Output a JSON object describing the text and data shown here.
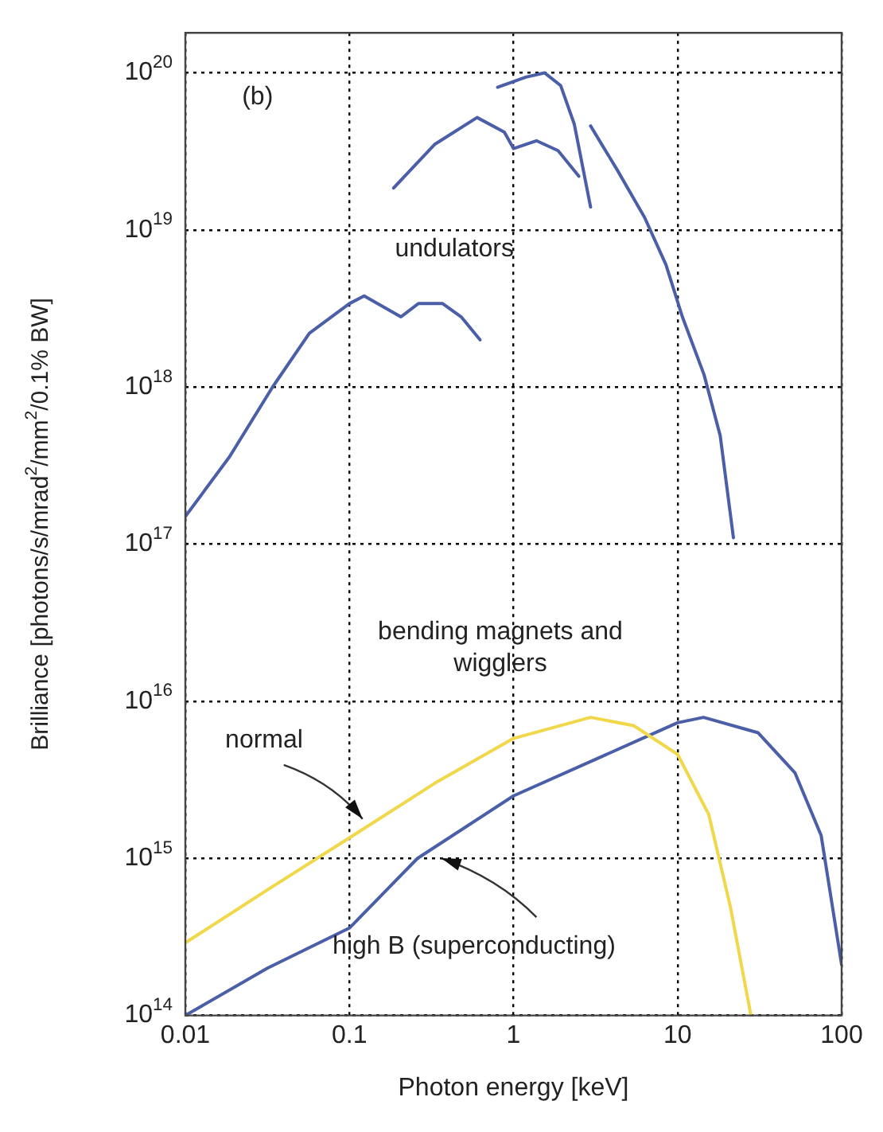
{
  "chart_data": {
    "type": "line",
    "xlabel": "Photon energy [keV]",
    "ylabel": "Brilliance [photons/s/mrad$^{2}$/mm$^{2}$/0.1% BW]",
    "log": "xy",
    "grid": true,
    "legend": false,
    "marker": "none",
    "line_style": "solid",
    "xlim": [
      0.01,
      100
    ],
    "xticks": [
      0.01,
      0.1,
      1,
      10,
      100
    ],
    "ylim": [
      100000000000000.0,
      1.8e+20
    ],
    "yticks": [
      {
        "value": 100000000000000.0,
        "label": "10$^{14}$"
      },
      {
        "value": 1000000000000000.0,
        "label": "10$^{15}$"
      },
      {
        "value": 1e+16,
        "label": "10$^{16}$"
      },
      {
        "value": 1e+17,
        "label": "10$^{17}$"
      },
      {
        "value": 1e+18,
        "label": "10$^{18}$"
      },
      {
        "value": 1e+19,
        "label": "10$^{19}$"
      },
      {
        "value": 1e+20,
        "label": "10$^{20}$"
      }
    ],
    "series": [
      {
        "color": "#4a5fa8",
        "x": [
          0.01,
          0.0186,
          0.034,
          0.057,
          0.1,
          0.123,
          0.206,
          0.263,
          0.37,
          0.48,
          0.625
        ],
        "values": [
          1.5e+17,
          3.6e+17,
          1e+18,
          2.2e+18,
          3.4e+18,
          3.8e+18,
          2.8e+18,
          3.4e+18,
          3.4e+18,
          2.8e+18,
          2e+18
        ]
      },
      {
        "color": "#4a5fa8",
        "x": [
          0.186,
          0.33,
          0.6,
          0.88,
          1.0,
          1.38,
          1.87,
          2.5
        ],
        "values": [
          1.85e+19,
          3.5e+19,
          5.2e+19,
          4.2e+19,
          3.3e+19,
          3.7e+19,
          3.2e+19,
          2.2e+19
        ]
      },
      {
        "color": "#4a5fa8",
        "x": [
          0.8,
          1.19,
          1.55,
          1.94,
          2.35,
          2.95
        ],
        "values": [
          8.1e+19,
          9.4e+19,
          1e+20,
          8.3e+19,
          4.7e+19,
          1.4e+19
        ]
      },
      {
        "color": "#4a5fa8",
        "x": [
          2.95,
          4.3,
          6.3,
          8.5,
          10.7,
          14.5,
          18.2,
          21.9
        ],
        "values": [
          4.6e+19,
          2.4e+19,
          1.2e+19,
          6e+18,
          2.8e+18,
          1.2e+18,
          4.9e+17,
          1.1e+17
        ]
      },
      {
        "color": "#f0d84a",
        "x": [
          0.01,
          0.0316,
          0.1,
          0.33,
          1,
          2.95,
          5.4,
          10,
          15.5,
          21,
          28
        ],
        "values": [
          290000000000000.0,
          630000000000000.0,
          1350000000000000.0,
          3000000000000000.0,
          5800000000000000.0,
          7900000000000000.0,
          7000000000000000.0,
          4600000000000000.0,
          1900000000000000.0,
          490000000000000.0,
          100000000000000.0
        ]
      },
      {
        "color": "#4a5fa8",
        "x": [
          0.01,
          0.0316,
          0.1,
          0.26,
          1,
          10,
          14.4,
          31,
          52,
          75,
          100
        ],
        "values": [
          100000000000000.0,
          200000000000000.0,
          360000000000000.0,
          1000000000000000.0,
          2500000000000000.0,
          7300000000000000.0,
          7900000000000000.0,
          6300000000000000.0,
          3500000000000000.0,
          1400000000000000.0,
          210000000000000.0
        ]
      }
    ],
    "annotations": [
      "(b)",
      "undulators",
      "bending magnets and wigglers",
      "normal",
      "high B (superconducting)"
    ]
  }
}
